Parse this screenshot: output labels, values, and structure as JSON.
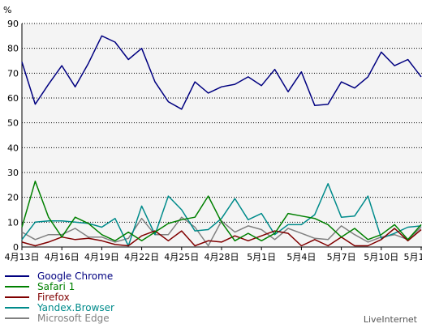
{
  "chart_data": {
    "type": "line",
    "ylabel": "%",
    "ylim": [
      0,
      90
    ],
    "yticks": [
      0,
      10,
      20,
      30,
      40,
      50,
      60,
      70,
      80,
      90
    ],
    "grid": "horizontal dashed",
    "x": [
      "4月13日",
      "4月14日",
      "4月15日",
      "4月16日",
      "4月17日",
      "4月18日",
      "4月19日",
      "4月20日",
      "4月21日",
      "4月22日",
      "4月23日",
      "4月24日",
      "4月25日",
      "4月26日",
      "4月27日",
      "4月28日",
      "4月29日",
      "4月30日",
      "5月1日",
      "5月2日",
      "5月3日",
      "5月4日",
      "5月5日",
      "5月6日",
      "5月7日",
      "5月8日",
      "5月9日",
      "5月10日",
      "5月11日",
      "5月12日",
      "5月13日"
    ],
    "xtick_labels": [
      "4月13日",
      "4月16日",
      "4月19日",
      "4月22日",
      "4月25日",
      "4月28日",
      "5月1日",
      "5月4日",
      "5月7日",
      "5月10日",
      "5月13日"
    ],
    "legend_position": "bottom-left",
    "series": [
      {
        "name": "Google Chrome",
        "color": "#000080",
        "values": [
          74.5,
          57.5,
          65.5,
          73,
          64.5,
          74,
          85,
          82.5,
          75.5,
          80,
          66.5,
          58.5,
          55.5,
          66.5,
          62,
          64.5,
          65.5,
          68.5,
          65,
          71.5,
          62.5,
          70.5,
          57,
          57.5,
          66.5,
          64,
          68.5,
          78.5,
          73,
          75.5,
          68.5
        ]
      },
      {
        "name": "Safari 1",
        "color": "#008000",
        "values": [
          8,
          26.5,
          12,
          4,
          12,
          9.5,
          5,
          2.5,
          6,
          2.5,
          6,
          9.5,
          11,
          12,
          20.5,
          10,
          2.5,
          5.5,
          2.5,
          5.5,
          13.5,
          12.5,
          11.5,
          9,
          4,
          7.5,
          3,
          5,
          9,
          3,
          9
        ]
      },
      {
        "name": "Firefox",
        "color": "#800000",
        "values": [
          2,
          0.5,
          2,
          4,
          3,
          3.5,
          2.5,
          1,
          0.5,
          4.5,
          6.5,
          2.5,
          6.5,
          0.5,
          2.5,
          2,
          4.5,
          2.5,
          4.5,
          6.5,
          5.5,
          0.5,
          3,
          0.5,
          4,
          0.5,
          0.5,
          3,
          7.5,
          2.5,
          7
        ]
      },
      {
        "name": "Yandex.Browser",
        "color": "#008b8b",
        "values": [
          3,
          10,
          10.5,
          10.5,
          10,
          9.5,
          8,
          11.5,
          0.5,
          16.5,
          5,
          20.5,
          15,
          6.5,
          7,
          11.5,
          19.5,
          11,
          13.5,
          5,
          9,
          9,
          13,
          25.5,
          12,
          12.5,
          20.5,
          3.5,
          5.5,
          8,
          8.5
        ]
      },
      {
        "name": "Microsoft Edge",
        "color": "#808080",
        "values": [
          6,
          3,
          5,
          5,
          7.5,
          4,
          4,
          2,
          3.5,
          11.5,
          5,
          5,
          12,
          8,
          0.5,
          10.5,
          6,
          8.5,
          7,
          3,
          7.5,
          5.5,
          3.5,
          3,
          8.5,
          5,
          2,
          4,
          5,
          3,
          8
        ]
      }
    ]
  },
  "credit": "LiveInternet"
}
